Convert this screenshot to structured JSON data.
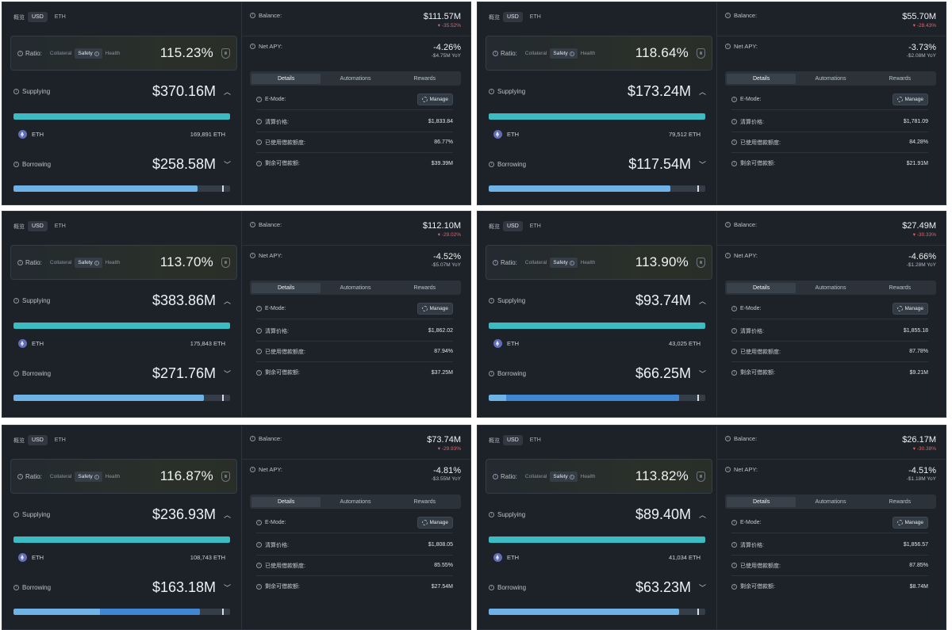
{
  "labels": {
    "overview": "概览",
    "usd": "USD",
    "eth": "ETH",
    "ratio": "Ratio:",
    "collateral": "Collateral",
    "safety": "Safety",
    "health": "Health",
    "supplying": "Supplying",
    "borrowing": "Borrowing",
    "balance": "Balance:",
    "net_apy": "Net APY:",
    "tab_details": "Details",
    "tab_automations": "Automations",
    "tab_rewards": "Rewards",
    "emode": "E-Mode:",
    "manage": "Manage",
    "liq_price": "清算价格:",
    "used_borrow": "已使用借款额度:",
    "remaining_borrow": "剩余可借款额:",
    "asset_name": "ETH"
  },
  "colors": {
    "panel_bg": "#1d2229",
    "supply_bar": "#3bbcc3",
    "borrow_bar": "#6fb2e6",
    "borrow_bar_alt": "#3f86d3",
    "negative": "#e0656b"
  },
  "panels": [
    {
      "ratio": "115.23%",
      "supplying": "$370.16M",
      "supply_asset_amount": "169,891 ETH",
      "borrowing": "$258.58M",
      "borrow_fill": 0.85,
      "balance": "$111.57M",
      "balance_change": "▾ -35.52%",
      "net_apy": "-4.26%",
      "net_apy_yoy": "-$4.75M YoY",
      "liq_price": "$1,833.84",
      "used_borrow": "86.77%",
      "remaining_borrow": "$39.39M"
    },
    {
      "ratio": "118.64%",
      "supplying": "$173.24M",
      "supply_asset_amount": "79,512 ETH",
      "borrowing": "$117.54M",
      "borrow_fill": 0.84,
      "balance": "$55.70M",
      "balance_change": "▾ -28.43%",
      "net_apy": "-3.73%",
      "net_apy_yoy": "-$2.08M YoY",
      "liq_price": "$1,781.09",
      "used_borrow": "84.28%",
      "remaining_borrow": "$21.91M"
    },
    {
      "ratio": "113.70%",
      "supplying": "$383.86M",
      "supply_asset_amount": "175,843 ETH",
      "borrowing": "$271.76M",
      "borrow_fill": 0.88,
      "balance": "$112.10M",
      "balance_change": "▾ -29.02%",
      "net_apy": "-4.52%",
      "net_apy_yoy": "-$5.07M YoY",
      "liq_price": "$1,862.02",
      "used_borrow": "87.94%",
      "remaining_borrow": "$37.25M"
    },
    {
      "ratio": "113.90%",
      "supplying": "$93.74M",
      "supply_asset_amount": "43,025 ETH",
      "borrowing": "$66.25M",
      "borrow_fill": 0.88,
      "balance": "$27.49M",
      "balance_change": "▾ -30.33%",
      "net_apy": "-4.66%",
      "net_apy_yoy": "-$1.28M YoY",
      "liq_price": "$1,855.18",
      "used_borrow": "87.78%",
      "remaining_borrow": "$9.21M"
    },
    {
      "ratio": "116.87%",
      "supplying": "$236.93M",
      "supply_asset_amount": "108,743 ETH",
      "borrowing": "$163.18M",
      "borrow_fill": 0.86,
      "balance": "$73.74M",
      "balance_change": "▾ -29.93%",
      "net_apy": "-4.81%",
      "net_apy_yoy": "-$3.55M YoY",
      "liq_price": "$1,808.05",
      "used_borrow": "85.55%",
      "remaining_borrow": "$27.54M"
    },
    {
      "ratio": "113.82%",
      "supplying": "$89.40M",
      "supply_asset_amount": "41,034 ETH",
      "borrowing": "$63.23M",
      "borrow_fill": 0.88,
      "balance": "$26.17M",
      "balance_change": "▾ -30.38%",
      "net_apy": "-4.51%",
      "net_apy_yoy": "-$1.18M YoY",
      "liq_price": "$1,856.57",
      "used_borrow": "87.85%",
      "remaining_borrow": "$8.74M"
    }
  ]
}
